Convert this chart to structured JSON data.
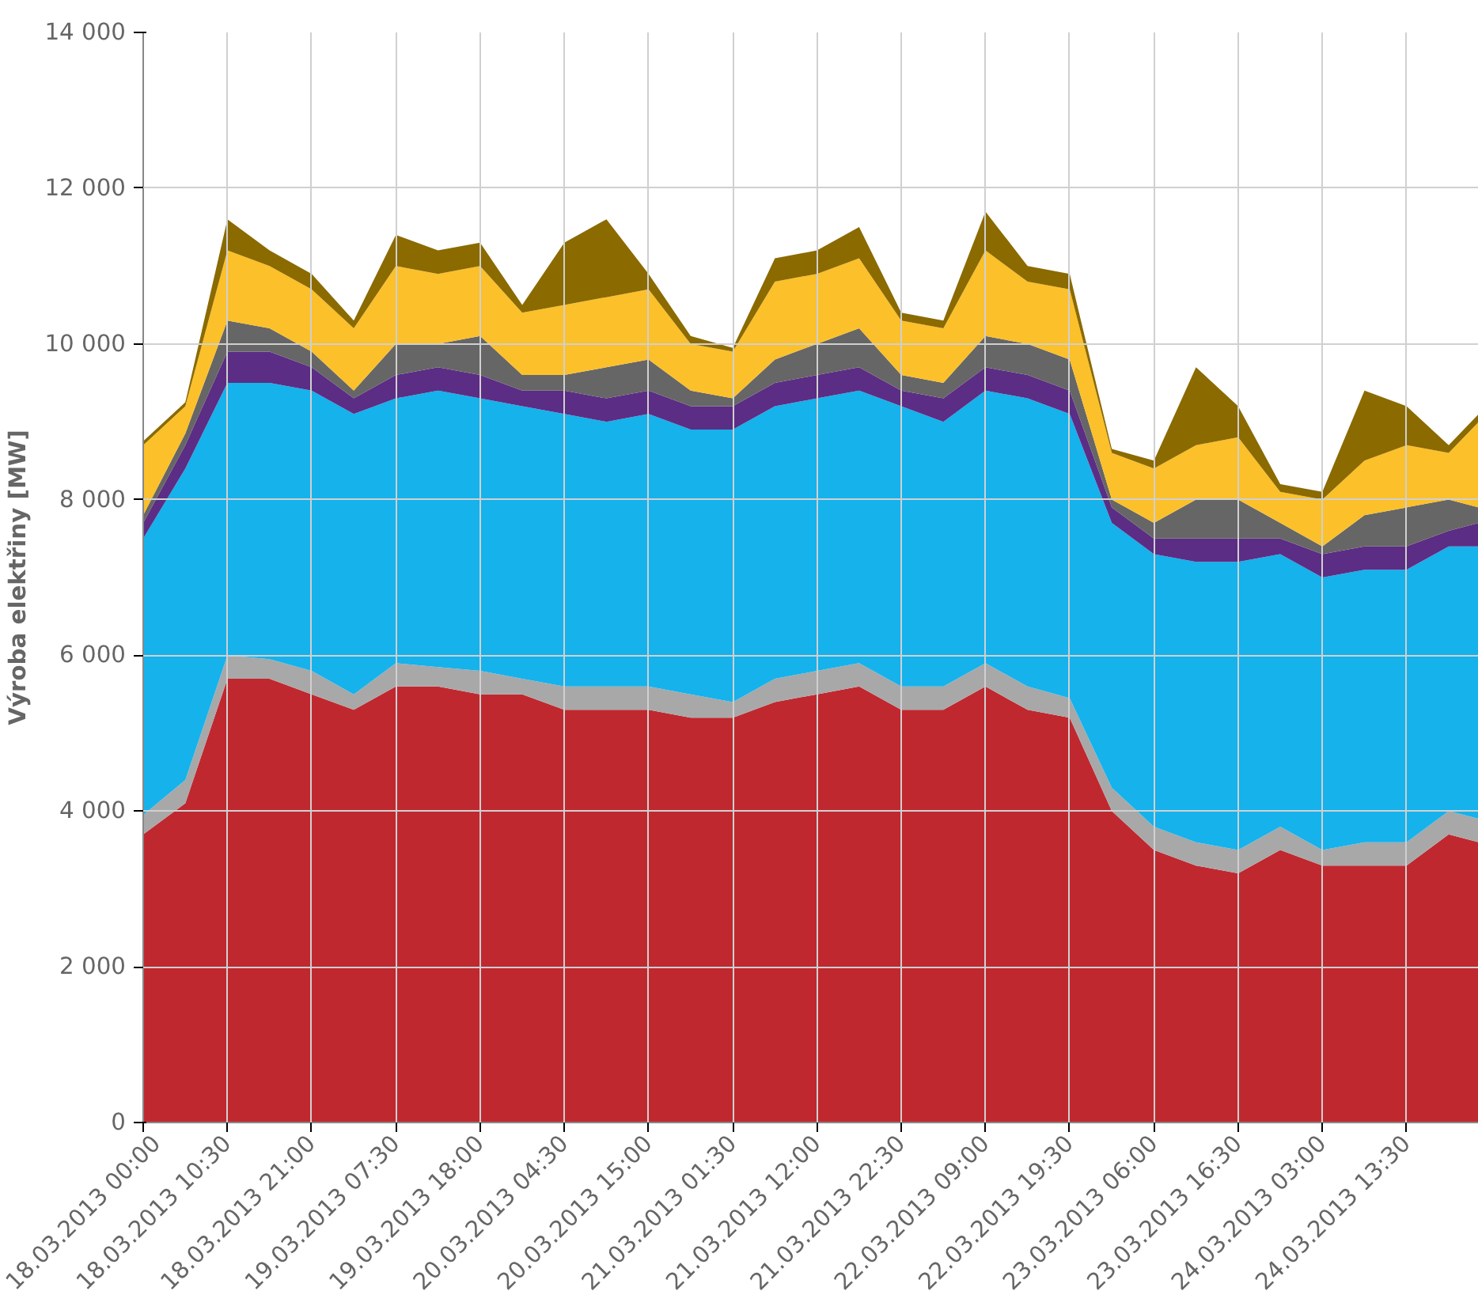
{
  "chart_data": {
    "type": "area",
    "stacked": true,
    "ylabel": "Výroba elektřiny [MW]",
    "grid": true,
    "x": [
      "2013-03-18T00:00",
      "2013-03-18T05:15",
      "2013-03-18T10:30",
      "2013-03-18T15:45",
      "2013-03-18T21:00",
      "2013-03-19T02:15",
      "2013-03-19T07:30",
      "2013-03-19T12:45",
      "2013-03-19T18:00",
      "2013-03-19T23:15",
      "2013-03-20T04:30",
      "2013-03-20T09:45",
      "2013-03-20T15:00",
      "2013-03-20T20:15",
      "2013-03-21T01:30",
      "2013-03-21T06:45",
      "2013-03-21T12:00",
      "2013-03-21T17:15",
      "2013-03-21T22:30",
      "2013-03-22T03:45",
      "2013-03-22T09:00",
      "2013-03-22T14:15",
      "2013-03-22T19:30",
      "2013-03-23T00:45",
      "2013-03-23T06:00",
      "2013-03-23T11:15",
      "2013-03-23T16:30",
      "2013-03-23T21:45",
      "2013-03-24T03:00",
      "2013-03-24T08:15",
      "2013-03-24T13:30",
      "2013-03-24T18:45",
      "2013-03-24T22:30"
    ],
    "xlim": [
      "2013-03-18T00:00",
      "2013-03-24T22:30"
    ],
    "xticks": [
      {
        "value": "2013-03-18T00:00",
        "label": "18.03.2013 00:00"
      },
      {
        "value": "2013-03-18T10:30",
        "label": "18.03.2013 10:30"
      },
      {
        "value": "2013-03-18T21:00",
        "label": "18.03.2013 21:00"
      },
      {
        "value": "2013-03-19T07:30",
        "label": "19.03.2013 07:30"
      },
      {
        "value": "2013-03-19T18:00",
        "label": "19.03.2013 18:00"
      },
      {
        "value": "2013-03-20T04:30",
        "label": "20.03.2013 04:30"
      },
      {
        "value": "2013-03-20T15:00",
        "label": "20.03.2013 15:00"
      },
      {
        "value": "2013-03-21T01:30",
        "label": "21.03.2013 01:30"
      },
      {
        "value": "2013-03-21T12:00",
        "label": "21.03.2013 12:00"
      },
      {
        "value": "2013-03-21T22:30",
        "label": "21.03.2013 22:30"
      },
      {
        "value": "2013-03-22T09:00",
        "label": "22.03.2013 09:00"
      },
      {
        "value": "2013-03-22T19:30",
        "label": "22.03.2013 19:30"
      },
      {
        "value": "2013-03-23T06:00",
        "label": "23.03.2013 06:00"
      },
      {
        "value": "2013-03-23T16:30",
        "label": "23.03.2013 16:30"
      },
      {
        "value": "2013-03-24T03:00",
        "label": "24.03.2013 03:00"
      },
      {
        "value": "2013-03-24T13:30",
        "label": "24.03.2013 13:30"
      }
    ],
    "ylim": [
      0,
      14000
    ],
    "yticks": [
      0,
      {
        "value": 2000,
        "label": "2 000"
      },
      {
        "value": 4000,
        "label": "4 000"
      },
      {
        "value": 6000,
        "label": "6 000"
      },
      {
        "value": 8000,
        "label": "8 000"
      },
      {
        "value": 10000,
        "label": "10 000"
      },
      {
        "value": 12000,
        "label": "12 000"
      },
      {
        "value": 14000,
        "label": "14 000"
      }
    ],
    "series": [
      {
        "color": "#c0282f",
        "values": [
          3700,
          4100,
          5700,
          5700,
          5500,
          5300,
          5600,
          5600,
          5500,
          5500,
          5300,
          5300,
          5300,
          5200,
          5200,
          5400,
          5500,
          5600,
          5300,
          5300,
          5600,
          5300,
          5200,
          4000,
          3500,
          3300,
          3200,
          3500,
          3300,
          3300,
          3300,
          3700,
          3600
        ]
      },
      {
        "color": "#a8a8a8",
        "values": [
          250,
          300,
          300,
          250,
          300,
          200,
          300,
          250,
          300,
          200,
          300,
          300,
          300,
          300,
          200,
          300,
          300,
          300,
          300,
          300,
          300,
          300,
          250,
          300,
          300,
          300,
          300,
          300,
          200,
          300,
          300,
          300,
          300
        ]
      },
      {
        "color": "#15b2ec",
        "values": [
          3550,
          4000,
          3500,
          3550,
          3600,
          3600,
          3400,
          3550,
          3500,
          3500,
          3500,
          3400,
          3500,
          3400,
          3500,
          3500,
          3500,
          3500,
          3600,
          3400,
          3500,
          3700,
          3650,
          3400,
          3500,
          3600,
          3700,
          3500,
          3500,
          3500,
          3500,
          3400,
          3500
        ]
      },
      {
        "color": "#5c2d84",
        "values": [
          200,
          300,
          400,
          400,
          300,
          200,
          300,
          300,
          300,
          200,
          300,
          300,
          300,
          300,
          300,
          300,
          300,
          300,
          200,
          300,
          300,
          300,
          300,
          200,
          200,
          300,
          300,
          200,
          300,
          300,
          300,
          200,
          300
        ]
      },
      {
        "color": "#666666",
        "values": [
          100,
          150,
          400,
          300,
          200,
          100,
          400,
          300,
          500,
          200,
          200,
          400,
          400,
          200,
          100,
          300,
          400,
          500,
          200,
          200,
          400,
          400,
          400,
          100,
          200,
          500,
          500,
          200,
          100,
          400,
          500,
          400,
          200
        ]
      },
      {
        "color": "#fcc02a",
        "values": [
          900,
          350,
          900,
          800,
          800,
          800,
          1000,
          900,
          900,
          800,
          900,
          900,
          900,
          600,
          600,
          1000,
          900,
          900,
          700,
          700,
          1100,
          800,
          900,
          600,
          700,
          700,
          800,
          400,
          600,
          700,
          800,
          600,
          1100
        ]
      },
      {
        "color": "#8b6a00",
        "values": [
          50,
          50,
          400,
          200,
          200,
          100,
          400,
          300,
          300,
          100,
          800,
          1000,
          200,
          100,
          50,
          300,
          300,
          400,
          100,
          100,
          500,
          200,
          200,
          50,
          100,
          1000,
          400,
          100,
          100,
          900,
          500,
          100,
          100
        ]
      }
    ]
  }
}
